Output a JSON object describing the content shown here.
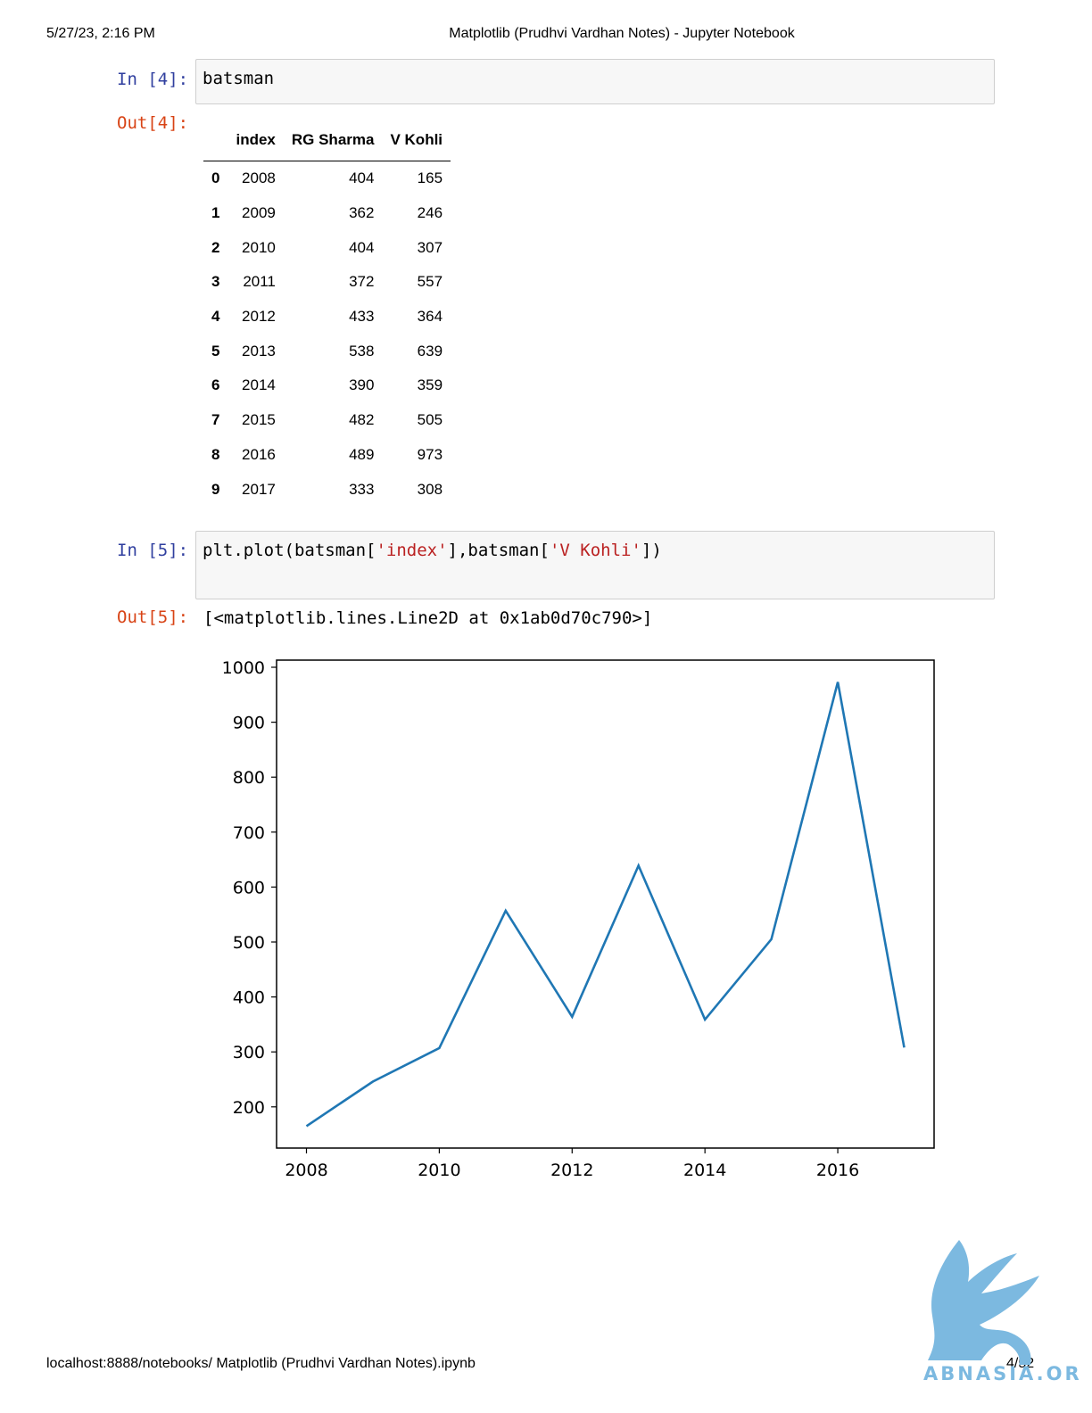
{
  "print_header": {
    "datetime": "5/27/23, 2:16 PM",
    "title": "Matplotlib (Prudhvi Vardhan Notes) - Jupyter Notebook"
  },
  "cells": {
    "in4": {
      "prompt": "In [4]:",
      "code": "batsman"
    },
    "out4": {
      "prompt": "Out[4]:"
    },
    "in5": {
      "prompt": "In [5]:",
      "code_parts": [
        "plt.plot(batsman[",
        "'index'",
        "],batsman[",
        "'V Kohli'",
        "])"
      ]
    },
    "out5": {
      "prompt": "Out[5]:",
      "text": "[<matplotlib.lines.Line2D at 0x1ab0d70c790>]"
    }
  },
  "table": {
    "columns": [
      "",
      "index",
      "RG Sharma",
      "V Kohli"
    ],
    "rows": [
      [
        "0",
        "2008",
        "404",
        "165"
      ],
      [
        "1",
        "2009",
        "362",
        "246"
      ],
      [
        "2",
        "2010",
        "404",
        "307"
      ],
      [
        "3",
        "2011",
        "372",
        "557"
      ],
      [
        "4",
        "2012",
        "433",
        "364"
      ],
      [
        "5",
        "2013",
        "538",
        "639"
      ],
      [
        "6",
        "2014",
        "390",
        "359"
      ],
      [
        "7",
        "2015",
        "482",
        "505"
      ],
      [
        "8",
        "2016",
        "489",
        "973"
      ],
      [
        "9",
        "2017",
        "333",
        "308"
      ]
    ]
  },
  "chart_data": {
    "type": "line",
    "title": "",
    "xlabel": "",
    "ylabel": "",
    "x": [
      2008,
      2009,
      2010,
      2011,
      2012,
      2013,
      2014,
      2015,
      2016,
      2017
    ],
    "series": [
      {
        "values": [
          165,
          246,
          307,
          557,
          364,
          639,
          359,
          505,
          973,
          308
        ],
        "color": "#1f77b4"
      }
    ],
    "xlim": [
      2007.55,
      2017.45
    ],
    "ylim": [
      125,
      1013
    ],
    "xticks": [
      2008,
      2010,
      2012,
      2014,
      2016
    ],
    "yticks": [
      200,
      300,
      400,
      500,
      600,
      700,
      800,
      900,
      1000
    ],
    "grid": false,
    "legend": "none"
  },
  "footer": {
    "url": "localhost:8888/notebooks/ Matplotlib (Prudhvi Vardhan Notes).ipynb",
    "page": "4/52"
  },
  "watermark": {
    "text": "ABNASIA.ORG",
    "color": "#7cb9e0"
  }
}
